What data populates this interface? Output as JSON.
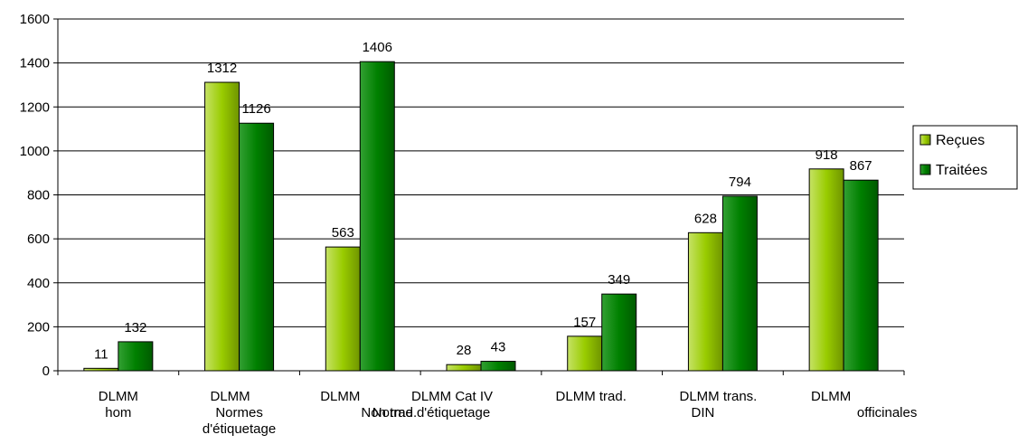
{
  "chart_data": {
    "type": "bar",
    "title": "",
    "xlabel": "",
    "ylabel": "",
    "ylim": [
      0,
      1600
    ],
    "yticks": [
      0,
      200,
      400,
      600,
      800,
      1000,
      1200,
      1400,
      1600
    ],
    "grid": true,
    "legend_position": "right",
    "categories": [
      [
        "DLMM",
        "hom"
      ],
      [
        "DLMM",
        "Normes",
        "d'étiquetage"
      ],
      [
        "DLMM",
        "Non trad."
      ],
      [
        "DLMM Cat IV",
        "Norme d'étiquetage"
      ],
      [
        "DLMM trad."
      ],
      [
        "DLMM trans.",
        "DIN"
      ],
      [
        "DLMM",
        "officinales"
      ]
    ],
    "series": [
      {
        "name": "Reçues",
        "color": "#99cc00",
        "values": [
          11,
          1312,
          563,
          28,
          157,
          628,
          918
        ]
      },
      {
        "name": "Traitées",
        "color": "#008000",
        "values": [
          132,
          1126,
          1406,
          43,
          349,
          794,
          867
        ]
      }
    ]
  }
}
